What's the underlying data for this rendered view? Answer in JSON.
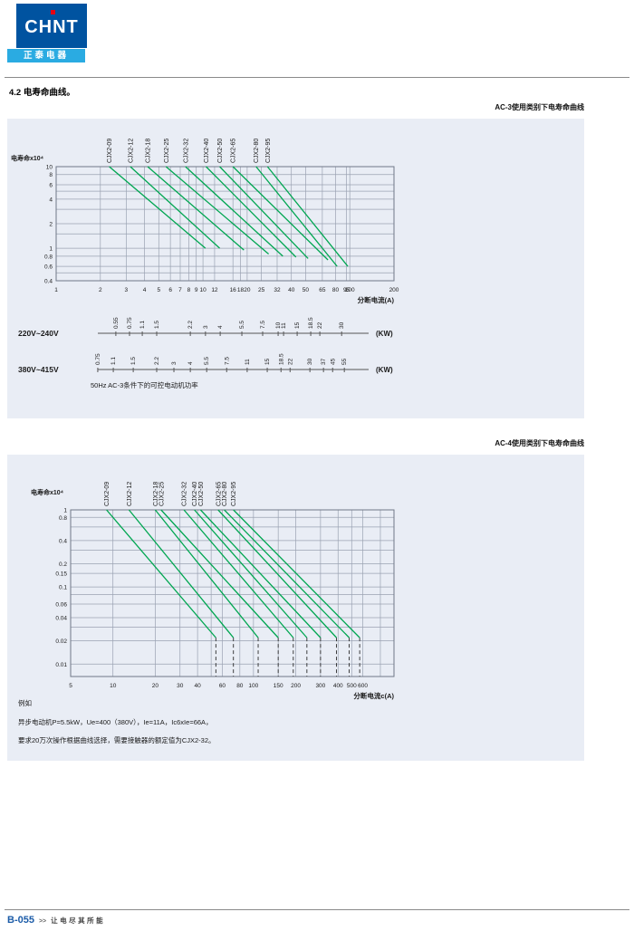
{
  "header": {
    "logo_text": "CHNT",
    "logo_subtitle": "正泰电器"
  },
  "section_title": "4.2 电寿命曲线。",
  "footer": {
    "page_code": "B-055",
    "arrows": ">>",
    "slogan": "让电尽其所能"
  },
  "chart_data": [
    {
      "type": "line",
      "title": "AC-3使用类别下电寿命曲线",
      "ylabel": "电寿命x10⁴",
      "xlabel": "分断电流(A)",
      "x_axis_scale": "log",
      "y_axis_scale": "log",
      "x_range": [
        1,
        200
      ],
      "y_range": [
        0.4,
        10
      ],
      "x_ticks": [
        1,
        2,
        3,
        4,
        5,
        6,
        7,
        8,
        9,
        10,
        12,
        16,
        18,
        20,
        25,
        32,
        40,
        50,
        65,
        80,
        95,
        100,
        200
      ],
      "y_ticks": [
        10,
        8,
        6,
        4,
        2,
        1,
        0.8,
        0.6,
        0.4
      ],
      "y_grid_extra": [
        5,
        3,
        1.5,
        0.5
      ],
      "grid": "on",
      "line_color": "#00a651",
      "series": [
        {
          "name": "CJX2-09",
          "points": [
            [
              2.3,
              10
            ],
            [
              10.4,
              1.0
            ]
          ]
        },
        {
          "name": "CJX2-12",
          "points": [
            [
              3.2,
              10
            ],
            [
              13,
              1.0
            ]
          ]
        },
        {
          "name": "CJX2-18",
          "points": [
            [
              4.2,
              10
            ],
            [
              19,
              0.95
            ]
          ]
        },
        {
          "name": "CJX2-25",
          "points": [
            [
              5.6,
              10
            ],
            [
              28,
              0.85
            ]
          ]
        },
        {
          "name": "CJX2-32",
          "points": [
            [
              7.6,
              10
            ],
            [
              35,
              0.8
            ]
          ]
        },
        {
          "name": "CJX2-40",
          "points": [
            [
              10.5,
              10
            ],
            [
              43,
              0.78
            ]
          ]
        },
        {
          "name": "CJX2-50",
          "points": [
            [
              13,
              10
            ],
            [
              52,
              0.75
            ]
          ]
        },
        {
          "name": "CJX2-65",
          "points": [
            [
              16,
              10
            ],
            [
              71,
              0.72
            ]
          ]
        },
        {
          "name": "CJX2-80",
          "points": [
            [
              23,
              10
            ],
            [
              82,
              0.6
            ]
          ]
        },
        {
          "name": "CJX2-95",
          "points": [
            [
              27.5,
              10
            ],
            [
              97,
              0.6
            ]
          ]
        }
      ],
      "power_scales": [
        {
          "label": "220V~240V",
          "unit": "(KW)",
          "ticks": [
            {
              "p": "0.55",
              "x": 2.55
            },
            {
              "p": "0.75",
              "x": 3.16
            },
            {
              "p": "1.1",
              "x": 3.86
            },
            {
              "p": "1.5",
              "x": 4.84
            },
            {
              "p": "2.2",
              "x": 8.2
            },
            {
              "p": "3",
              "x": 10.4
            },
            {
              "p": "4",
              "x": 13.1
            },
            {
              "p": "5.5",
              "x": 18.4
            },
            {
              "p": "7.5",
              "x": 25.5
            },
            {
              "p": "10",
              "x": 32.5
            },
            {
              "p": "11",
              "x": 35.4
            },
            {
              "p": "15",
              "x": 43.8
            },
            {
              "p": "18.5",
              "x": 54.2
            },
            {
              "p": "22",
              "x": 62.5
            },
            {
              "p": "30",
              "x": 88
            }
          ]
        },
        {
          "label": "380V~415V",
          "unit": "(KW)",
          "ticks": [
            {
              "p": "0.75",
              "x": 1.92
            },
            {
              "p": "1.1",
              "x": 2.45
            },
            {
              "p": "1.5",
              "x": 3.35
            },
            {
              "p": "2.2",
              "x": 4.84
            },
            {
              "p": "3",
              "x": 6.34
            },
            {
              "p": "4",
              "x": 8.2
            },
            {
              "p": "5.5",
              "x": 10.6
            },
            {
              "p": "7.5",
              "x": 14.5
            },
            {
              "p": "11",
              "x": 20
            },
            {
              "p": "15",
              "x": 27.4
            },
            {
              "p": "18.5",
              "x": 34
            },
            {
              "p": "22",
              "x": 39.2
            },
            {
              "p": "30",
              "x": 53.5
            },
            {
              "p": "37",
              "x": 66.2
            },
            {
              "p": "45",
              "x": 76.4
            },
            {
              "p": "55",
              "x": 91.8
            }
          ]
        }
      ],
      "footnote": "50Hz  AC-3条件下的可控电动机功率"
    },
    {
      "type": "line",
      "title": "AC-4使用类别下电寿命曲线",
      "ylabel": "电寿命x10⁴",
      "xlabel": "分断电流c(A)",
      "x_axis_scale": "log",
      "y_axis_scale": "log",
      "x_range": [
        5,
        1000
      ],
      "y_range": [
        0.0069,
        1
      ],
      "x_ticks": [
        5,
        10,
        20,
        30,
        40,
        60,
        80,
        100,
        150,
        200,
        300,
        400,
        500,
        600
      ],
      "x_grid_extra": [
        50,
        800
      ],
      "y_ticks": [
        1,
        0.8,
        0.4,
        0.2,
        0.15,
        0.1,
        0.06,
        0.04,
        0.02,
        0.01
      ],
      "y_grid_extra": [
        0.6,
        0.3,
        0.08,
        0.03
      ],
      "grid": "on",
      "line_color": "#00a651",
      "series": [
        {
          "name": "CJX2-09",
          "points": [
            [
              9,
              1
            ],
            [
              54,
              0.022
            ]
          ],
          "drop_x": 54
        },
        {
          "name": "CJX2-12",
          "points": [
            [
              13,
              1
            ],
            [
              72,
              0.022
            ]
          ],
          "drop_x": 72
        },
        {
          "name": "CJX2-18",
          "points": [
            [
              20,
              1
            ],
            [
              108,
              0.022
            ]
          ],
          "drop_x": 108
        },
        {
          "name": "CJX2-25",
          "points": [
            [
              22,
              1
            ],
            [
              150,
              0.022
            ]
          ],
          "drop_x": 150
        },
        {
          "name": "CJX2-32",
          "points": [
            [
              32,
              1
            ],
            [
              192,
              0.022
            ]
          ],
          "drop_x": 192
        },
        {
          "name": "CJX2-40",
          "points": [
            [
              38,
              1
            ],
            [
              240,
              0.022
            ]
          ],
          "drop_x": 240
        },
        {
          "name": "CJX2-50",
          "points": [
            [
              42,
              1
            ],
            [
              300,
              0.022
            ]
          ],
          "drop_x": 300
        },
        {
          "name": "CJX2-65",
          "points": [
            [
              56,
              1
            ],
            [
              390,
              0.022
            ]
          ],
          "drop_x": 390
        },
        {
          "name": "CJX2-80",
          "points": [
            [
              62,
              1
            ],
            [
              480,
              0.022
            ]
          ],
          "drop_x": 480
        },
        {
          "name": "CJX2-95",
          "points": [
            [
              72,
              1
            ],
            [
              570,
              0.022
            ]
          ],
          "drop_x": 570
        }
      ],
      "example": [
        "例如",
        "异步电动机P=5.5kW，Ue=400（380V），Ie=11A，Ic6xIe=66A，",
        "要求20万次操作根据曲线选择，需要接触器的额定值为CJX2-32。"
      ]
    }
  ]
}
